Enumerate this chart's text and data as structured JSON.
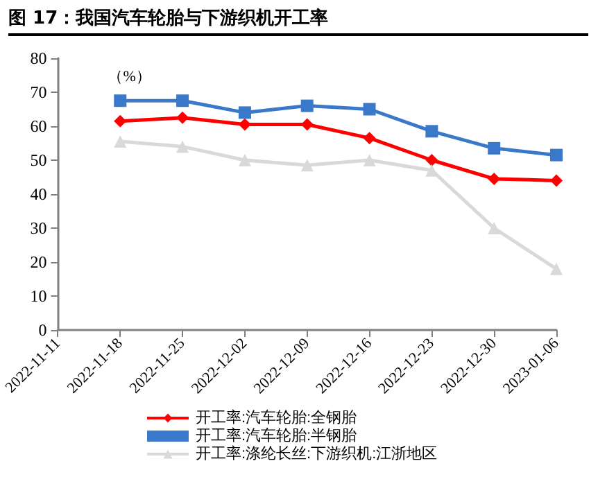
{
  "chart_data": {
    "type": "line",
    "title": "图 17：我国汽车轮胎与下游织机开工率",
    "ylabel": "（%）",
    "categories": [
      "2022-11-11",
      "2022-11-18",
      "2022-11-25",
      "2022-12-02",
      "2022-12-09",
      "2022-12-16",
      "2022-12-23",
      "2022-12-30",
      "2023-01-06"
    ],
    "series": [
      {
        "name": "开工率:汽车轮胎:全钢胎",
        "color": "#ff0000",
        "marker": "diamond",
        "values": [
          null,
          61.5,
          62.5,
          60.5,
          60.5,
          56.5,
          50,
          44.5,
          44
        ]
      },
      {
        "name": "开工率:汽车轮胎:半钢胎",
        "color": "#3a78c9",
        "marker": "square",
        "values": [
          null,
          67.5,
          67.5,
          64,
          66,
          65,
          58.5,
          53.5,
          51.5
        ]
      },
      {
        "name": "开工率:涤纶长丝:下游织机:江浙地区",
        "color": "#d9d9d9",
        "marker": "triangle",
        "values": [
          null,
          55.5,
          54,
          50,
          48.5,
          50,
          47,
          30,
          18
        ]
      }
    ],
    "ylim": [
      0,
      80
    ],
    "yticks": [
      0,
      10,
      20,
      30,
      40,
      50,
      60,
      70,
      80
    ],
    "grid": false,
    "legend": "bottom",
    "line_style": "solid"
  }
}
